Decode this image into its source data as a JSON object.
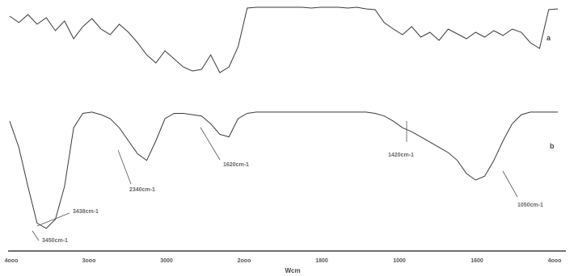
{
  "chart_data": {
    "type": "line",
    "xlabel": "Wcm",
    "x_direction": "reversed",
    "x_ticks": [
      "4ooo",
      "3ooo",
      "3000",
      "2ooo",
      "1800",
      "1000",
      "1600",
      "4ooo"
    ],
    "grid": false,
    "legend": "none",
    "line_color": "#3a3a3a",
    "panels": [
      {
        "label": "a",
        "annotations": [],
        "series": [
          {
            "x": [
              4000,
              3950,
              3900,
              3850,
              3800,
              3750,
              3700,
              3650,
              3600,
              3550,
              3500,
              3450,
              3400,
              3350,
              3300,
              3250,
              3200,
              3150,
              3100,
              3050,
              3000,
              2950,
              2900,
              2850,
              2800,
              2750,
              2700,
              2650,
              2600,
              2550,
              2500,
              2450,
              2400,
              2350,
              2300,
              2250,
              2200,
              2150,
              2100,
              2050,
              2000,
              1950,
              1900,
              1850,
              1800,
              1750,
              1700,
              1650,
              1600,
              1550,
              1500,
              1450,
              1400,
              1350,
              1300,
              1250,
              1200,
              1150,
              1100,
              1050,
              1000
            ],
            "y": [
              88,
              80,
              90,
              78,
              86,
              70,
              82,
              60,
              75,
              85,
              72,
              65,
              78,
              68,
              55,
              40,
              30,
              45,
              35,
              25,
              20,
              22,
              40,
              18,
              25,
              50,
              98,
              99,
              99,
              99,
              99,
              99,
              99,
              98,
              99,
              99,
              99,
              98,
              99,
              97,
              96,
              80,
              72,
              65,
              75,
              62,
              68,
              58,
              72,
              66,
              60,
              68,
              62,
              70,
              64,
              72,
              68,
              55,
              48,
              96,
              97
            ]
          }
        ]
      },
      {
        "label": "b",
        "annotations": [
          "3450cm-1",
          "3438cm-1",
          "2340cm-1",
          "1620cm-1",
          "1420cm-1",
          "1050cm-1"
        ],
        "series": [
          {
            "x": [
              4000,
              3950,
              3900,
              3850,
              3800,
              3750,
              3700,
              3650,
              3600,
              3550,
              3500,
              3450,
              3400,
              3350,
              3300,
              3250,
              3200,
              3150,
              3100,
              3050,
              3000,
              2950,
              2900,
              2850,
              2800,
              2750,
              2700,
              2650,
              2600,
              2550,
              2500,
              2450,
              2400,
              2350,
              2300,
              2250,
              2200,
              2150,
              2100,
              2050,
              2000,
              1950,
              1900,
              1850,
              1800,
              1750,
              1700,
              1650,
              1600,
              1550,
              1500,
              1450,
              1400,
              1350,
              1300,
              1250,
              1200,
              1150,
              1100,
              1050,
              1000
            ],
            "y": [
              90,
              70,
              40,
              12,
              8,
              15,
              40,
              85,
              96,
              97,
              95,
              92,
              85,
              75,
              65,
              60,
              75,
              92,
              96,
              96,
              95,
              94,
              88,
              80,
              78,
              92,
              96,
              97,
              97,
              97,
              97,
              97,
              97,
              97,
              97,
              97,
              97,
              97,
              97,
              97,
              96,
              94,
              90,
              85,
              82,
              78,
              74,
              70,
              66,
              60,
              50,
              45,
              48,
              60,
              75,
              88,
              95,
              97,
              97,
              97,
              97
            ]
          }
        ]
      }
    ]
  }
}
